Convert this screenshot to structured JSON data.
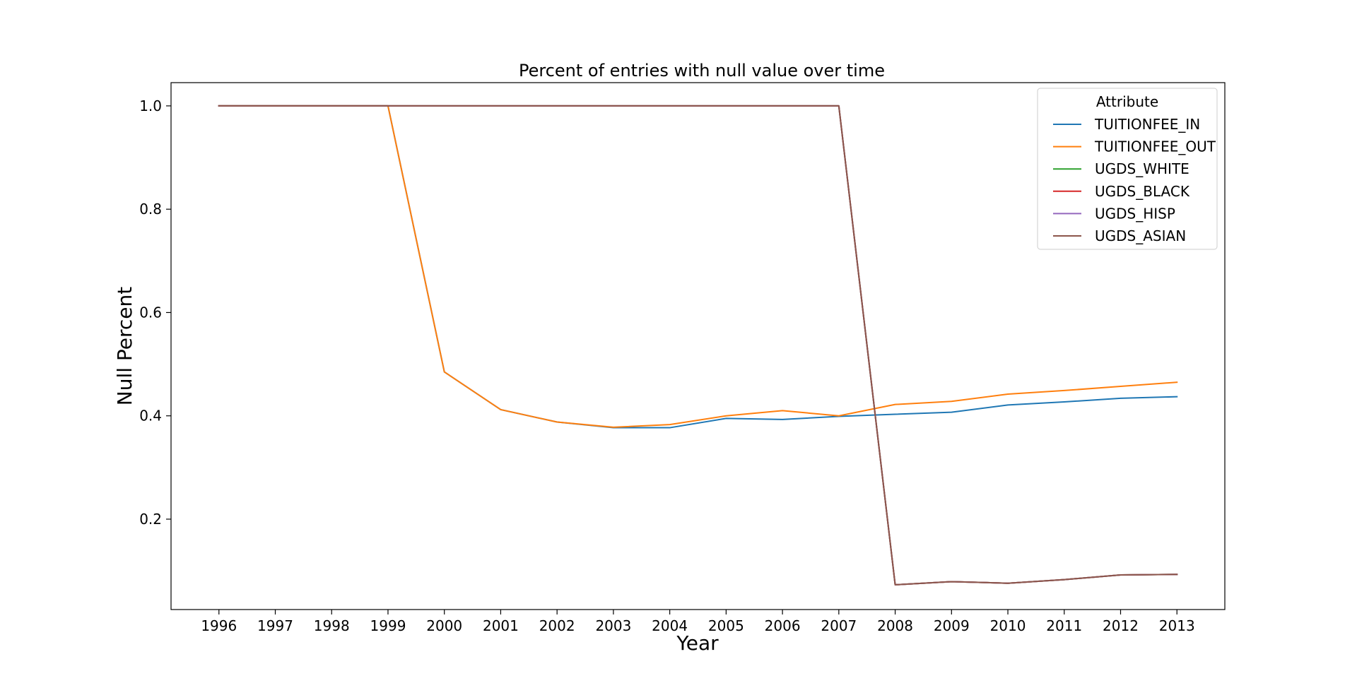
{
  "chart_data": {
    "type": "line",
    "title": "Percent of entries with null value over time",
    "xlabel": "Year",
    "ylabel": "Null Percent",
    "x": [
      1996,
      1997,
      1998,
      1999,
      2000,
      2001,
      2002,
      2003,
      2004,
      2005,
      2006,
      2007,
      2008,
      2009,
      2010,
      2011,
      2012,
      2013
    ],
    "xlim": [
      1995.15,
      2013.85
    ],
    "ylim": [
      0.025,
      1.045
    ],
    "yticks": [
      0.2,
      0.4,
      0.6,
      0.8,
      1.0
    ],
    "ytick_labels": [
      "0.2",
      "0.4",
      "0.6",
      "0.8",
      "1.0"
    ],
    "grid": false,
    "legend": {
      "title": "Attribute",
      "placement": "top-right"
    },
    "series": [
      {
        "name": "TUITIONFEE_IN",
        "color": "#1f77b4",
        "values": [
          1.0,
          1.0,
          1.0,
          1.0,
          0.485,
          0.412,
          0.388,
          0.377,
          0.377,
          0.395,
          0.393,
          0.399,
          0.403,
          0.407,
          0.421,
          0.427,
          0.434,
          0.437
        ]
      },
      {
        "name": "TUITIONFEE_OUT",
        "color": "#ff7f0e",
        "values": [
          1.0,
          1.0,
          1.0,
          1.0,
          0.485,
          0.412,
          0.388,
          0.378,
          0.383,
          0.4,
          0.41,
          0.4,
          0.422,
          0.428,
          0.442,
          0.449,
          0.457,
          0.465
        ]
      },
      {
        "name": "UGDS_WHITE",
        "color": "#2ca02c",
        "values": [
          1.0,
          1.0,
          1.0,
          1.0,
          1.0,
          1.0,
          1.0,
          1.0,
          1.0,
          1.0,
          1.0,
          1.0,
          0.073,
          0.079,
          0.076,
          0.083,
          0.092,
          0.093
        ]
      },
      {
        "name": "UGDS_BLACK",
        "color": "#d62728",
        "values": [
          1.0,
          1.0,
          1.0,
          1.0,
          1.0,
          1.0,
          1.0,
          1.0,
          1.0,
          1.0,
          1.0,
          1.0,
          0.073,
          0.079,
          0.076,
          0.083,
          0.092,
          0.093
        ]
      },
      {
        "name": "UGDS_HISP",
        "color": "#9467bd",
        "values": [
          1.0,
          1.0,
          1.0,
          1.0,
          1.0,
          1.0,
          1.0,
          1.0,
          1.0,
          1.0,
          1.0,
          1.0,
          0.073,
          0.079,
          0.076,
          0.083,
          0.092,
          0.093
        ]
      },
      {
        "name": "UGDS_ASIAN",
        "color": "#8c564b",
        "values": [
          1.0,
          1.0,
          1.0,
          1.0,
          1.0,
          1.0,
          1.0,
          1.0,
          1.0,
          1.0,
          1.0,
          1.0,
          0.073,
          0.079,
          0.076,
          0.083,
          0.092,
          0.093
        ]
      }
    ]
  }
}
